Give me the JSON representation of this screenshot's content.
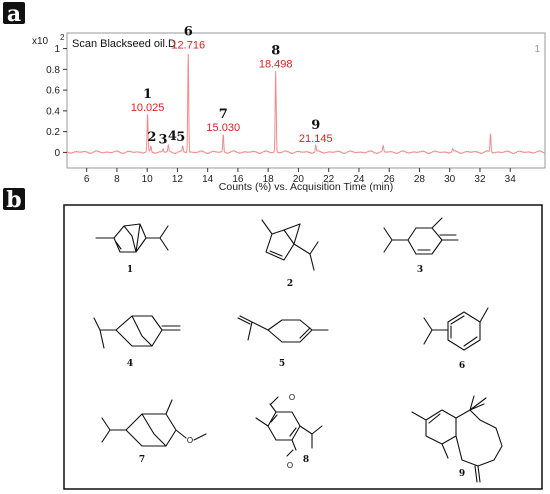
{
  "panels": {
    "a": "a",
    "b": "b"
  },
  "chart_data": {
    "type": "line",
    "title": "Scan Blackseed oil.D",
    "multiplier": "x10",
    "multiplier_exp": "2",
    "xlabel": "Counts (%) vs. Acquisition Time (min)",
    "xlim": [
      4.7,
      36.3
    ],
    "ylim": [
      -0.15,
      1.15
    ],
    "x_ticks": [
      6,
      8,
      10,
      12,
      14,
      16,
      18,
      20,
      22,
      24,
      26,
      28,
      30,
      32,
      34
    ],
    "y_ticks": [
      0,
      0.2,
      0.4,
      0.6,
      0.8,
      1
    ],
    "corner_label": "1",
    "line_color": "#f28b8b",
    "label_color": "#e0201e",
    "baseline": 0.0,
    "peaks": [
      {
        "x": 10.025,
        "y": 0.36,
        "num": "1",
        "rt": "10.025"
      },
      {
        "x": 10.25,
        "y": 0.05,
        "num": "2",
        "rt": ""
      },
      {
        "x": 11.05,
        "y": 0.03,
        "num": "3",
        "rt": ""
      },
      {
        "x": 11.4,
        "y": 0.06,
        "num": "4",
        "rt": ""
      },
      {
        "x": 12.35,
        "y": 0.05,
        "num": "5",
        "rt": ""
      },
      {
        "x": 12.716,
        "y": 0.96,
        "num": "6",
        "rt": "12.716"
      },
      {
        "x": 15.03,
        "y": 0.17,
        "num": "7",
        "rt": "15.030"
      },
      {
        "x": 18.498,
        "y": 0.78,
        "num": "8",
        "rt": "18.498"
      },
      {
        "x": 21.145,
        "y": 0.06,
        "num": "9",
        "rt": "21.145"
      },
      {
        "x": 25.6,
        "y": 0.06,
        "num": "",
        "rt": ""
      },
      {
        "x": 30.2,
        "y": 0.03,
        "num": "",
        "rt": ""
      },
      {
        "x": 32.7,
        "y": 0.18,
        "num": "",
        "rt": ""
      }
    ]
  },
  "structures": [
    {
      "label": "1"
    },
    {
      "label": "2"
    },
    {
      "label": "3"
    },
    {
      "label": "4"
    },
    {
      "label": "5"
    },
    {
      "label": "6"
    },
    {
      "label": "7"
    },
    {
      "label": "8"
    },
    {
      "label": "9"
    }
  ],
  "atoms": {
    "oxygen": "O"
  }
}
